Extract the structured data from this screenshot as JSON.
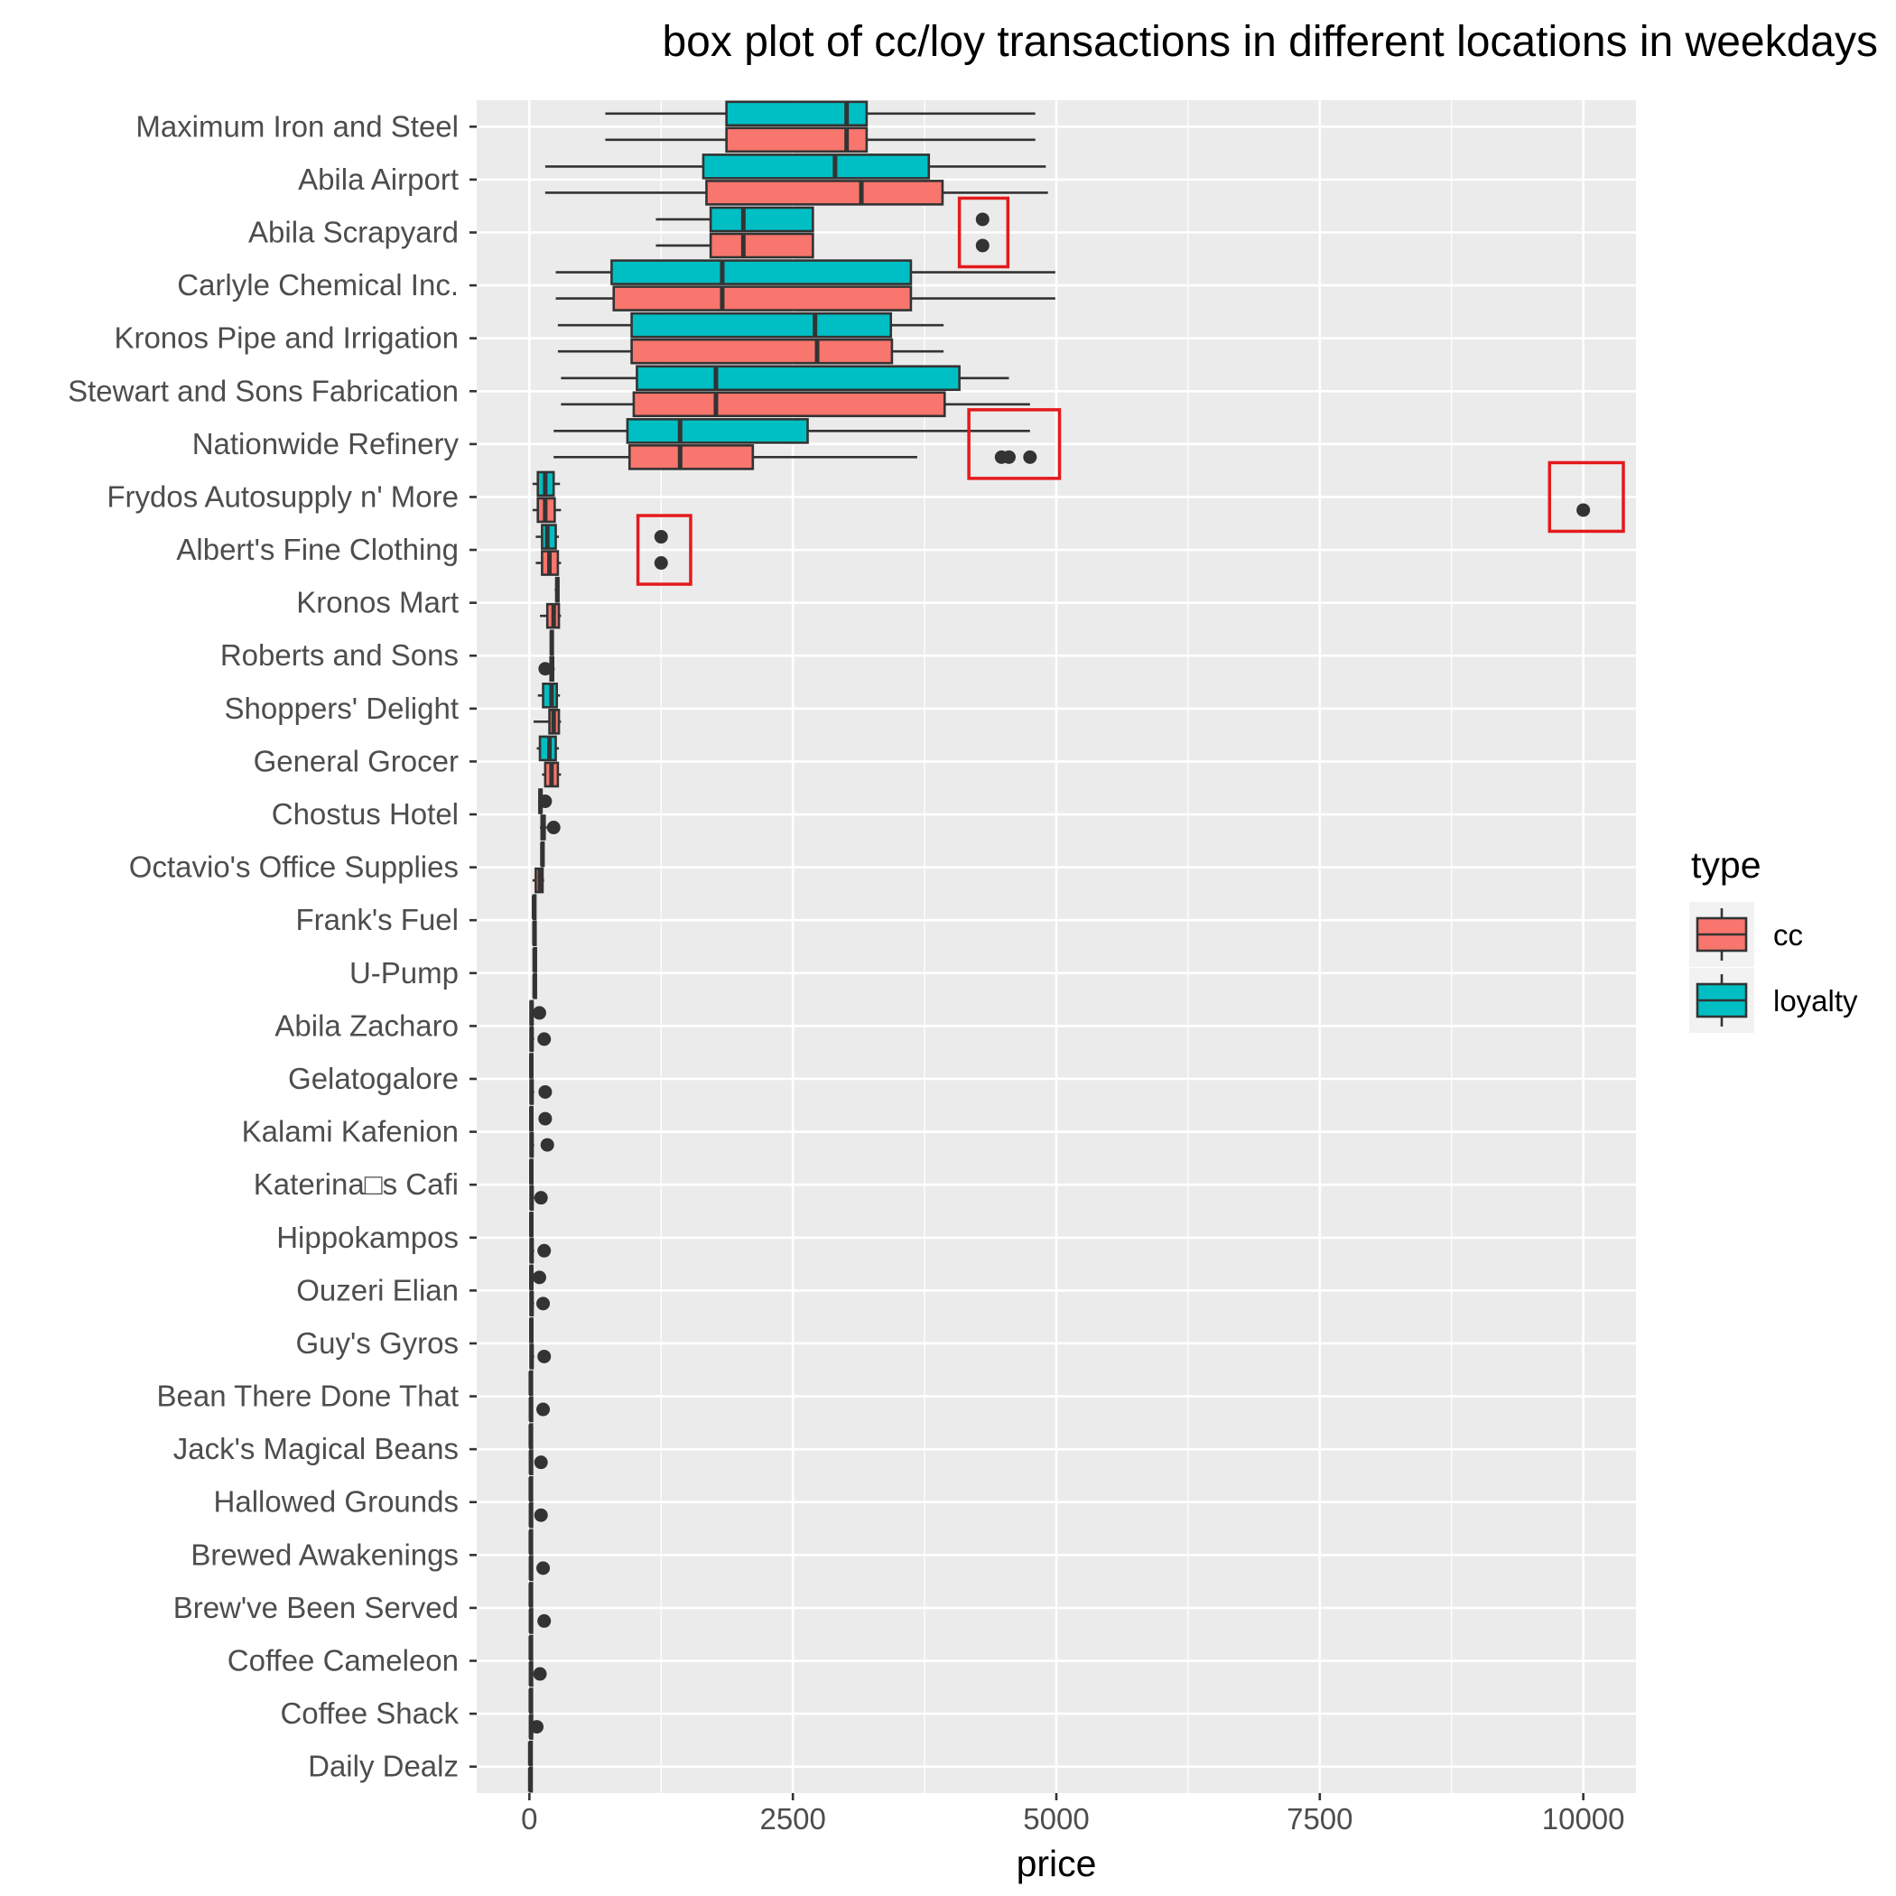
{
  "chart_data": {
    "type": "box",
    "title": "box plot of cc/loy transactions in different locations in weekdays",
    "xlabel": "price",
    "ylabel": "",
    "xlim": [
      -500,
      10500
    ],
    "xticks": [
      0,
      2500,
      5000,
      7500,
      10000
    ],
    "xtick_labels": [
      "0",
      "2500",
      "5000",
      "7500",
      "10000"
    ],
    "legend": {
      "title": "type",
      "position": "right",
      "entries": [
        {
          "name": "cc",
          "color": "#F8766D"
        },
        {
          "name": "loyalty",
          "color": "#00BFC4"
        }
      ]
    },
    "grid": true,
    "colors": {
      "panel": "#EBEBEB",
      "grid": "#FFFFFF",
      "cc": "#F8766D",
      "loyalty": "#00BFC4",
      "box_line": "#333333",
      "highlight": "#E41A1C"
    },
    "categories": [
      "Maximum Iron and Steel",
      "Abila Airport",
      "Abila Scrapyard",
      "Carlyle Chemical Inc.",
      "Kronos Pipe and Irrigation",
      "Stewart and Sons Fabrication",
      "Nationwide Refinery",
      "Frydos Autosupply n' More",
      "Albert's Fine Clothing",
      "Kronos Mart",
      "Roberts and Sons",
      "Shoppers' Delight",
      "General Grocer",
      "Chostus Hotel",
      "Octavio's Office Supplies",
      "Frank's Fuel",
      "U-Pump",
      "Abila Zacharo",
      "Gelatogalore",
      "Kalami Kafenion",
      "Katerina□s Cafi",
      "Hippokampos",
      "Ouzeri Elian",
      "Guy's Gyros",
      "Bean There Done That",
      "Jack's Magical Beans",
      "Hallowed Grounds",
      "Brewed Awakenings",
      "Brew've Been Served",
      "Coffee Cameleon",
      "Coffee Shack",
      "Daily Dealz"
    ],
    "series": [
      {
        "name": "loyalty",
        "boxes": [
          {
            "min": 720,
            "q1": 1870,
            "median": 3010,
            "q3": 3200,
            "max": 4800,
            "outliers": []
          },
          {
            "min": 150,
            "q1": 1650,
            "median": 2900,
            "q3": 3790,
            "max": 4900,
            "outliers": []
          },
          {
            "min": 1200,
            "q1": 1720,
            "median": 2030,
            "q3": 2690,
            "max": 2690,
            "outliers": [
              4300
            ]
          },
          {
            "min": 250,
            "q1": 780,
            "median": 1830,
            "q3": 3620,
            "max": 4990,
            "outliers": []
          },
          {
            "min": 270,
            "q1": 970,
            "median": 2710,
            "q3": 3430,
            "max": 3930,
            "outliers": []
          },
          {
            "min": 300,
            "q1": 1020,
            "median": 1770,
            "q3": 4080,
            "max": 4550,
            "outliers": []
          },
          {
            "min": 230,
            "q1": 930,
            "median": 1430,
            "q3": 2640,
            "max": 4750,
            "outliers": []
          },
          {
            "min": 30,
            "q1": 80,
            "median": 150,
            "q3": 230,
            "max": 290,
            "outliers": []
          },
          {
            "min": 60,
            "q1": 120,
            "median": 170,
            "q3": 250,
            "max": 280,
            "outliers": [
              1250
            ]
          },
          {
            "min": 240,
            "q1": 255,
            "median": 265,
            "q3": 275,
            "max": 285,
            "outliers": []
          },
          {
            "min": 195,
            "q1": 205,
            "median": 212,
            "q3": 220,
            "max": 230,
            "outliers": []
          },
          {
            "min": 80,
            "q1": 130,
            "median": 210,
            "q3": 260,
            "max": 290,
            "outliers": []
          },
          {
            "min": 70,
            "q1": 100,
            "median": 190,
            "q3": 250,
            "max": 280,
            "outliers": []
          },
          {
            "min": 85,
            "q1": 95,
            "median": 105,
            "q3": 115,
            "max": 130,
            "outliers": [
              150
            ]
          },
          {
            "min": 110,
            "q1": 117,
            "median": 123,
            "q3": 130,
            "max": 138,
            "outliers": []
          },
          {
            "min": 35,
            "q1": 40,
            "median": 44,
            "q3": 48,
            "max": 55,
            "outliers": []
          },
          {
            "min": 40,
            "q1": 45,
            "median": 50,
            "q3": 55,
            "max": 62,
            "outliers": []
          },
          {
            "min": 5,
            "q1": 12,
            "median": 20,
            "q3": 30,
            "max": 45,
            "outliers": [
              95
            ]
          },
          {
            "min": 5,
            "q1": 10,
            "median": 18,
            "q3": 25,
            "max": 35,
            "outliers": []
          },
          {
            "min": 5,
            "q1": 10,
            "median": 18,
            "q3": 25,
            "max": 40,
            "outliers": [
              150
            ]
          },
          {
            "min": 5,
            "q1": 10,
            "median": 18,
            "q3": 25,
            "max": 35,
            "outliers": []
          },
          {
            "min": 5,
            "q1": 10,
            "median": 18,
            "q3": 25,
            "max": 35,
            "outliers": []
          },
          {
            "min": 5,
            "q1": 10,
            "median": 18,
            "q3": 25,
            "max": 40,
            "outliers": [
              95
            ]
          },
          {
            "min": 5,
            "q1": 10,
            "median": 18,
            "q3": 25,
            "max": 35,
            "outliers": []
          },
          {
            "min": 4,
            "q1": 8,
            "median": 13,
            "q3": 18,
            "max": 25,
            "outliers": []
          },
          {
            "min": 4,
            "q1": 8,
            "median": 13,
            "q3": 18,
            "max": 25,
            "outliers": []
          },
          {
            "min": 4,
            "q1": 8,
            "median": 13,
            "q3": 18,
            "max": 25,
            "outliers": []
          },
          {
            "min": 4,
            "q1": 8,
            "median": 13,
            "q3": 18,
            "max": 25,
            "outliers": []
          },
          {
            "min": 4,
            "q1": 8,
            "median": 13,
            "q3": 18,
            "max": 25,
            "outliers": []
          },
          {
            "min": 4,
            "q1": 8,
            "median": 13,
            "q3": 18,
            "max": 25,
            "outliers": []
          },
          {
            "min": 4,
            "q1": 8,
            "median": 13,
            "q3": 18,
            "max": 25,
            "outliers": []
          },
          {
            "min": 2,
            "q1": 5,
            "median": 8,
            "q3": 12,
            "max": 18,
            "outliers": []
          }
        ]
      },
      {
        "name": "cc",
        "boxes": [
          {
            "min": 720,
            "q1": 1870,
            "median": 3010,
            "q3": 3200,
            "max": 4800,
            "outliers": []
          },
          {
            "min": 150,
            "q1": 1680,
            "median": 3150,
            "q3": 3920,
            "max": 4920,
            "outliers": []
          },
          {
            "min": 1200,
            "q1": 1720,
            "median": 2030,
            "q3": 2690,
            "max": 2690,
            "outliers": [
              4300
            ]
          },
          {
            "min": 250,
            "q1": 800,
            "median": 1830,
            "q3": 3620,
            "max": 4990,
            "outliers": []
          },
          {
            "min": 270,
            "q1": 970,
            "median": 2730,
            "q3": 3440,
            "max": 3930,
            "outliers": []
          },
          {
            "min": 300,
            "q1": 990,
            "median": 1770,
            "q3": 3940,
            "max": 4750,
            "outliers": []
          },
          {
            "min": 230,
            "q1": 950,
            "median": 1430,
            "q3": 2120,
            "max": 3680,
            "outliers": [
              4480,
              4550,
              4750
            ]
          },
          {
            "min": 30,
            "q1": 80,
            "median": 150,
            "q3": 240,
            "max": 300,
            "outliers": [
              10000
            ]
          },
          {
            "min": 60,
            "q1": 120,
            "median": 190,
            "q3": 270,
            "max": 300,
            "outliers": [
              1250
            ]
          },
          {
            "min": 100,
            "q1": 170,
            "median": 230,
            "q3": 280,
            "max": 300,
            "outliers": []
          },
          {
            "min": 180,
            "q1": 200,
            "median": 215,
            "q3": 225,
            "max": 240,
            "outliers": [
              150
            ]
          },
          {
            "min": 40,
            "q1": 190,
            "median": 230,
            "q3": 280,
            "max": 300,
            "outliers": []
          },
          {
            "min": 120,
            "q1": 150,
            "median": 210,
            "q3": 270,
            "max": 300,
            "outliers": []
          },
          {
            "min": 100,
            "q1": 115,
            "median": 130,
            "q3": 145,
            "max": 165,
            "outliers": [
              230
            ]
          },
          {
            "min": 30,
            "q1": 60,
            "median": 100,
            "q3": 125,
            "max": 140,
            "outliers": []
          },
          {
            "min": 35,
            "q1": 42,
            "median": 48,
            "q3": 54,
            "max": 62,
            "outliers": []
          },
          {
            "min": 38,
            "q1": 45,
            "median": 50,
            "q3": 56,
            "max": 65,
            "outliers": []
          },
          {
            "min": 5,
            "q1": 12,
            "median": 20,
            "q3": 30,
            "max": 45,
            "outliers": [
              140
            ]
          },
          {
            "min": 5,
            "q1": 12,
            "median": 20,
            "q3": 30,
            "max": 45,
            "outliers": [
              150
            ]
          },
          {
            "min": 5,
            "q1": 12,
            "median": 20,
            "q3": 30,
            "max": 45,
            "outliers": [
              170
            ]
          },
          {
            "min": 5,
            "q1": 12,
            "median": 20,
            "q3": 30,
            "max": 45,
            "outliers": [
              110
            ]
          },
          {
            "min": 5,
            "q1": 12,
            "median": 20,
            "q3": 30,
            "max": 45,
            "outliers": [
              140
            ]
          },
          {
            "min": 5,
            "q1": 12,
            "median": 20,
            "q3": 30,
            "max": 45,
            "outliers": [
              130
            ]
          },
          {
            "min": 5,
            "q1": 12,
            "median": 20,
            "q3": 30,
            "max": 45,
            "outliers": [
              140
            ]
          },
          {
            "min": 4,
            "q1": 9,
            "median": 14,
            "q3": 20,
            "max": 30,
            "outliers": [
              130
            ]
          },
          {
            "min": 4,
            "q1": 9,
            "median": 14,
            "q3": 20,
            "max": 30,
            "outliers": [
              110
            ]
          },
          {
            "min": 4,
            "q1": 9,
            "median": 14,
            "q3": 20,
            "max": 30,
            "outliers": [
              110
            ]
          },
          {
            "min": 4,
            "q1": 9,
            "median": 14,
            "q3": 20,
            "max": 30,
            "outliers": [
              130
            ]
          },
          {
            "min": 4,
            "q1": 9,
            "median": 14,
            "q3": 20,
            "max": 30,
            "outliers": [
              140
            ]
          },
          {
            "min": 4,
            "q1": 9,
            "median": 14,
            "q3": 20,
            "max": 30,
            "outliers": [
              100
            ]
          },
          {
            "min": 4,
            "q1": 9,
            "median": 14,
            "q3": 20,
            "max": 30,
            "outliers": [
              70
            ]
          },
          {
            "min": 2,
            "q1": 5,
            "median": 8,
            "q3": 12,
            "max": 18,
            "outliers": []
          }
        ]
      }
    ],
    "annotations": [
      {
        "type": "highlight-box",
        "category": "Abila Scrapyard",
        "x_range": [
          4080,
          4540
        ]
      },
      {
        "type": "highlight-box",
        "category": "Nationwide Refinery",
        "x_range": [
          4170,
          5030
        ]
      },
      {
        "type": "highlight-box",
        "category": "Frydos Autosupply n' More",
        "x_range": [
          9680,
          10380
        ]
      },
      {
        "type": "highlight-box",
        "category": "Albert's Fine Clothing",
        "x_range": [
          1030,
          1530
        ]
      }
    ]
  }
}
